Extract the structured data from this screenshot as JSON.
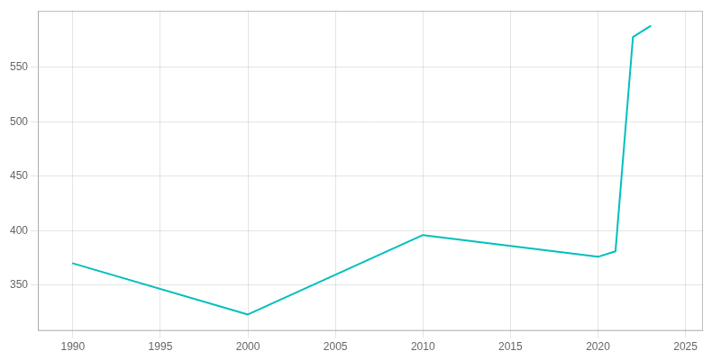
{
  "chart_data": {
    "type": "line",
    "x": [
      1990,
      2000,
      2010,
      2020,
      2021,
      2022,
      2023
    ],
    "values": [
      370,
      323,
      396,
      376,
      381,
      578,
      588
    ],
    "color": "#00BFBF",
    "xlim": [
      1988,
      2026
    ],
    "ylim": [
      308,
      602
    ],
    "xticks": [
      1990,
      1995,
      2000,
      2005,
      2010,
      2015,
      2020,
      2025
    ],
    "yticks": [
      350,
      400,
      450,
      500,
      550
    ],
    "grid": true
  }
}
